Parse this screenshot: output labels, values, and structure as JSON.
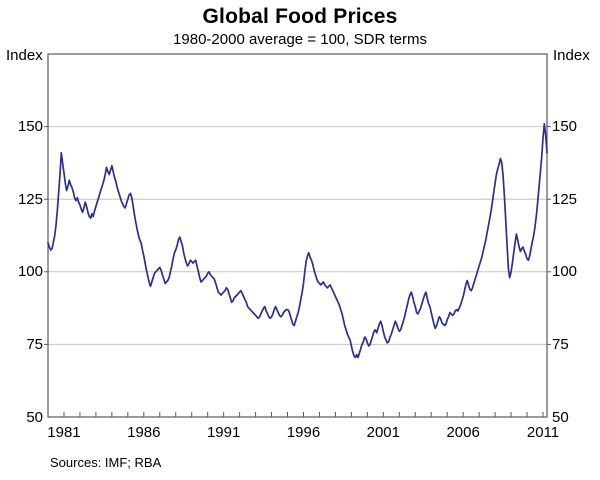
{
  "header": {
    "title": "Global Food Prices",
    "subtitle": "1980-2000 average = 100, SDR terms"
  },
  "axes": {
    "left_unit": "Index",
    "right_unit": "Index"
  },
  "footer": {
    "sources": "Sources: IMF; RBA"
  },
  "colors": {
    "line": "#2d2d96",
    "grid": "#c4c4c4",
    "frame": "#5a5a5a",
    "text": "#000000",
    "background": "#ffffff"
  },
  "chart_data": {
    "type": "line",
    "title": "Global Food Prices",
    "subtitle": "1980-2000 average = 100, SDR terms",
    "xlabel": "",
    "ylabel": "Index",
    "ylim": [
      50,
      175
    ],
    "xlim": [
      1980,
      2011.25
    ],
    "y_ticks": [
      50,
      75,
      100,
      125,
      150
    ],
    "gridlines": [
      75,
      100,
      125,
      150
    ],
    "x_tick_labels": [
      1981,
      1986,
      1991,
      1996,
      2001,
      2006,
      2011
    ],
    "x_minor_tick_start": 1981,
    "x_minor_tick_end": 2011,
    "grid": true,
    "legend": "none",
    "series": [
      {
        "name": "Global food prices index, SDR terms (1980-2000 average = 100)",
        "frequency": "monthly",
        "start_year": 1980,
        "start_month": 1,
        "values": [
          110.0,
          108.5,
          107.5,
          108.0,
          110.0,
          112.5,
          116.0,
          121.0,
          127.0,
          133.5,
          141.0,
          137.5,
          134.0,
          130.5,
          128.0,
          129.5,
          131.5,
          130.0,
          129.0,
          127.5,
          125.5,
          124.5,
          125.5,
          124.0,
          123.0,
          121.5,
          120.5,
          122.0,
          124.0,
          122.5,
          120.5,
          119.0,
          118.5,
          120.0,
          119.0,
          121.0,
          122.5,
          124.0,
          125.5,
          127.0,
          128.5,
          130.0,
          131.5,
          133.5,
          136.0,
          134.5,
          133.5,
          135.0,
          136.5,
          134.5,
          132.5,
          131.0,
          129.0,
          127.5,
          126.0,
          124.5,
          123.5,
          122.5,
          122.0,
          123.5,
          125.0,
          126.5,
          127.0,
          125.5,
          122.5,
          119.5,
          117.0,
          114.5,
          112.5,
          111.0,
          110.0,
          107.5,
          105.5,
          103.0,
          100.5,
          98.5,
          96.5,
          95.0,
          96.5,
          98.0,
          99.5,
          100.0,
          100.5,
          101.0,
          101.5,
          100.5,
          99.0,
          97.5,
          96.0,
          96.5,
          97.0,
          98.0,
          100.0,
          102.0,
          104.5,
          106.5,
          107.5,
          109.0,
          111.0,
          112.0,
          110.5,
          109.0,
          106.5,
          104.5,
          103.0,
          102.0,
          103.0,
          104.0,
          103.5,
          103.0,
          103.5,
          104.0,
          102.0,
          100.0,
          98.0,
          96.5,
          97.0,
          97.5,
          98.0,
          98.5,
          99.5,
          100.0,
          99.0,
          98.5,
          98.0,
          97.5,
          96.0,
          94.5,
          93.0,
          92.5,
          92.0,
          92.5,
          93.0,
          93.5,
          94.5,
          94.0,
          92.5,
          91.0,
          89.5,
          90.0,
          91.0,
          91.5,
          92.0,
          92.5,
          93.0,
          93.5,
          92.5,
          91.5,
          90.5,
          89.5,
          88.0,
          87.5,
          87.0,
          86.5,
          86.0,
          85.5,
          85.0,
          84.5,
          84.0,
          84.5,
          85.5,
          86.5,
          87.5,
          88.0,
          86.5,
          85.5,
          84.5,
          84.0,
          84.5,
          85.5,
          87.0,
          88.0,
          87.0,
          86.0,
          85.0,
          84.5,
          85.0,
          86.0,
          86.5,
          87.0,
          87.0,
          86.5,
          85.0,
          83.5,
          82.0,
          81.5,
          83.0,
          84.5,
          86.0,
          88.0,
          90.5,
          93.0,
          96.0,
          100.0,
          103.5,
          105.5,
          106.5,
          105.0,
          104.0,
          102.5,
          100.5,
          99.0,
          97.5,
          96.5,
          96.0,
          95.5,
          96.0,
          96.5,
          95.5,
          95.0,
          94.5,
          95.0,
          95.5,
          94.5,
          93.5,
          92.5,
          91.5,
          90.5,
          89.5,
          88.5,
          87.0,
          85.5,
          83.5,
          81.5,
          80.0,
          78.5,
          77.5,
          76.5,
          74.5,
          72.5,
          71.0,
          70.5,
          71.5,
          70.5,
          72.0,
          73.5,
          75.0,
          76.0,
          77.5,
          77.0,
          75.5,
          74.5,
          75.0,
          76.5,
          78.0,
          79.5,
          80.0,
          79.0,
          80.5,
          82.0,
          83.0,
          81.5,
          79.5,
          77.5,
          76.5,
          75.5,
          76.0,
          77.5,
          78.5,
          80.0,
          81.5,
          83.0,
          82.0,
          80.5,
          79.5,
          80.0,
          81.5,
          83.0,
          84.5,
          86.5,
          88.5,
          90.5,
          92.0,
          93.0,
          91.5,
          89.5,
          88.0,
          86.0,
          85.5,
          86.5,
          87.5,
          89.0,
          90.5,
          92.0,
          93.0,
          91.0,
          89.0,
          88.0,
          86.0,
          84.0,
          82.0,
          80.5,
          81.5,
          83.0,
          84.5,
          84.0,
          82.5,
          82.0,
          81.5,
          82.0,
          83.5,
          84.5,
          86.0,
          85.5,
          85.0,
          85.5,
          86.5,
          87.0,
          86.5,
          87.5,
          88.5,
          90.0,
          91.5,
          93.5,
          95.5,
          97.0,
          95.5,
          94.0,
          93.5,
          94.5,
          96.0,
          97.5,
          99.0,
          100.5,
          102.0,
          103.5,
          105.0,
          107.0,
          109.0,
          111.0,
          113.5,
          116.0,
          118.5,
          121.0,
          124.0,
          127.5,
          130.5,
          133.5,
          135.5,
          137.0,
          139.0,
          137.5,
          133.0,
          126.0,
          118.0,
          109.0,
          101.0,
          98.0,
          100.0,
          103.0,
          106.5,
          110.0,
          113.0,
          111.0,
          108.5,
          107.0,
          108.0,
          108.5,
          107.0,
          106.0,
          104.5,
          104.0,
          105.5,
          108.0,
          110.5,
          112.5,
          115.5,
          119.5,
          124.0,
          129.0,
          134.0,
          139.5,
          146.0,
          151.0,
          147.0,
          141.0
        ]
      }
    ]
  }
}
